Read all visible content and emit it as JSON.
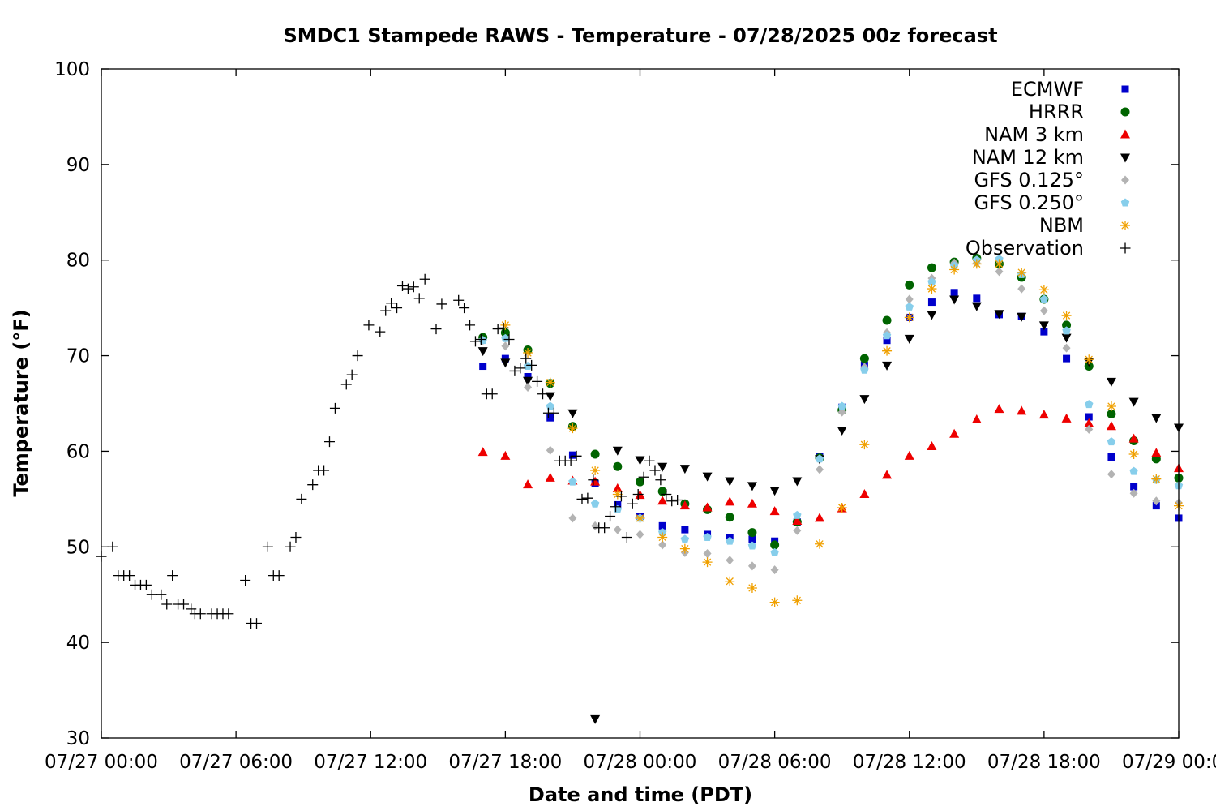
{
  "chart_data": {
    "type": "scatter",
    "title": "SMDC1 Stampede RAWS - Temperature - 07/28/2025 00z forecast",
    "xlabel": "Date and time (PDT)",
    "ylabel": "Temperature (°F)",
    "xlim": [
      "2025-07-27 00:00",
      "2025-07-29 00:00"
    ],
    "ylim": [
      30,
      100
    ],
    "yticks": [
      30,
      40,
      50,
      60,
      70,
      80,
      90,
      100
    ],
    "xtick_labels": [
      "07/27 00:00",
      "07/27 06:00",
      "07/27 12:00",
      "07/27 18:00",
      "07/28 00:00",
      "07/28 06:00",
      "07/28 12:00",
      "07/28 18:00",
      "07/29 00:00"
    ],
    "legend_position": "top-right",
    "grid": false,
    "series": [
      {
        "name": "ECMWF",
        "marker": "square",
        "color": "#0000cc",
        "x": [
          "2025-07-27 17:00",
          "2025-07-27 18:00",
          "2025-07-27 19:00",
          "2025-07-27 20:00",
          "2025-07-27 21:00",
          "2025-07-27 22:00",
          "2025-07-27 23:00",
          "2025-07-28 00:00",
          "2025-07-28 01:00",
          "2025-07-28 02:00",
          "2025-07-28 03:00",
          "2025-07-28 04:00",
          "2025-07-28 05:00",
          "2025-07-28 06:00",
          "2025-07-28 07:00",
          "2025-07-28 08:00",
          "2025-07-28 09:00",
          "2025-07-28 10:00",
          "2025-07-28 11:00",
          "2025-07-28 12:00",
          "2025-07-28 13:00",
          "2025-07-28 14:00",
          "2025-07-28 15:00",
          "2025-07-28 16:00",
          "2025-07-28 17:00",
          "2025-07-28 18:00",
          "2025-07-28 19:00",
          "2025-07-28 20:00",
          "2025-07-28 21:00",
          "2025-07-28 22:00",
          "2025-07-28 23:00",
          "2025-07-29 00:00"
        ],
        "y": [
          68.9,
          69.7,
          67.8,
          63.5,
          59.6,
          56.6,
          54.4,
          53.2,
          52.2,
          51.8,
          51.3,
          51.0,
          50.8,
          50.6,
          52.6,
          59.4,
          64.6,
          69.0,
          71.6,
          74.0,
          75.6,
          76.6,
          76.0,
          74.3,
          74.1,
          72.5,
          69.7,
          63.6,
          59.4,
          56.3,
          54.3,
          53.0
        ]
      },
      {
        "name": "HRRR",
        "marker": "circle",
        "color": "#006400",
        "x": [
          "2025-07-27 17:00",
          "2025-07-27 18:00",
          "2025-07-27 19:00",
          "2025-07-27 20:00",
          "2025-07-27 21:00",
          "2025-07-27 22:00",
          "2025-07-27 23:00",
          "2025-07-28 00:00",
          "2025-07-28 01:00",
          "2025-07-28 02:00",
          "2025-07-28 03:00",
          "2025-07-28 04:00",
          "2025-07-28 05:00",
          "2025-07-28 06:00",
          "2025-07-28 07:00",
          "2025-07-28 08:00",
          "2025-07-28 09:00",
          "2025-07-28 10:00",
          "2025-07-28 11:00",
          "2025-07-28 12:00",
          "2025-07-28 13:00",
          "2025-07-28 14:00",
          "2025-07-28 15:00",
          "2025-07-28 16:00",
          "2025-07-28 17:00",
          "2025-07-28 18:00",
          "2025-07-28 19:00",
          "2025-07-28 20:00",
          "2025-07-28 21:00",
          "2025-07-28 22:00",
          "2025-07-28 23:00",
          "2025-07-29 00:00"
        ],
        "y": [
          71.9,
          72.4,
          70.6,
          67.1,
          62.6,
          59.7,
          58.4,
          56.8,
          55.8,
          54.5,
          53.9,
          53.1,
          51.5,
          50.2,
          52.6,
          59.3,
          64.3,
          69.7,
          73.7,
          77.4,
          79.2,
          79.8,
          80.2,
          79.6,
          78.2,
          75.9,
          73.2,
          68.9,
          63.9,
          61.1,
          59.2,
          57.2
        ]
      },
      {
        "name": "NAM 3 km",
        "marker": "triangle-up",
        "color": "#ee0000",
        "x": [
          "2025-07-27 17:00",
          "2025-07-27 18:00",
          "2025-07-27 19:00",
          "2025-07-27 20:00",
          "2025-07-27 21:00",
          "2025-07-27 22:00",
          "2025-07-27 23:00",
          "2025-07-28 00:00",
          "2025-07-28 01:00",
          "2025-07-28 02:00",
          "2025-07-28 03:00",
          "2025-07-28 04:00",
          "2025-07-28 05:00",
          "2025-07-28 06:00",
          "2025-07-28 07:00",
          "2025-07-28 08:00",
          "2025-07-28 09:00",
          "2025-07-28 10:00",
          "2025-07-28 11:00",
          "2025-07-28 12:00",
          "2025-07-28 13:00",
          "2025-07-28 14:00",
          "2025-07-28 15:00",
          "2025-07-28 16:00",
          "2025-07-28 17:00",
          "2025-07-28 18:00",
          "2025-07-28 19:00",
          "2025-07-28 20:00",
          "2025-07-28 21:00",
          "2025-07-28 22:00",
          "2025-07-28 23:00",
          "2025-07-29 00:00"
        ],
        "y": [
          59.9,
          59.5,
          56.5,
          57.2,
          56.9,
          56.8,
          56.1,
          55.4,
          54.8,
          54.3,
          54.1,
          54.7,
          54.5,
          53.7,
          52.7,
          53.0,
          54.0,
          55.5,
          57.5,
          59.5,
          60.5,
          61.8,
          63.3,
          64.4,
          64.2,
          63.8,
          63.4,
          62.9,
          62.6,
          61.3,
          59.8,
          58.2
        ]
      },
      {
        "name": "NAM 12 km",
        "marker": "triangle-down",
        "color": "#000000",
        "x": [
          "2025-07-27 17:00",
          "2025-07-27 18:00",
          "2025-07-27 19:00",
          "2025-07-27 20:00",
          "2025-07-27 21:00",
          "2025-07-27 22:00",
          "2025-07-27 23:00",
          "2025-07-28 00:00",
          "2025-07-28 01:00",
          "2025-07-28 02:00",
          "2025-07-28 03:00",
          "2025-07-28 04:00",
          "2025-07-28 05:00",
          "2025-07-28 06:00",
          "2025-07-28 07:00",
          "2025-07-28 08:00",
          "2025-07-28 09:00",
          "2025-07-28 10:00",
          "2025-07-28 11:00",
          "2025-07-28 12:00",
          "2025-07-28 13:00",
          "2025-07-28 14:00",
          "2025-07-28 15:00",
          "2025-07-28 16:00",
          "2025-07-28 17:00",
          "2025-07-28 18:00",
          "2025-07-28 19:00",
          "2025-07-28 20:00",
          "2025-07-28 21:00",
          "2025-07-28 22:00",
          "2025-07-28 23:00",
          "2025-07-29 00:00"
        ],
        "y": [
          70.5,
          69.3,
          67.4,
          65.8,
          64.0,
          32.0,
          60.1,
          59.1,
          58.4,
          58.2,
          57.4,
          56.9,
          56.4,
          55.9,
          56.9,
          59.2,
          62.2,
          65.5,
          69.0,
          71.8,
          74.3,
          75.9,
          75.2,
          74.4,
          74.1,
          73.2,
          71.9,
          69.4,
          67.3,
          65.2,
          63.5,
          62.5
        ]
      },
      {
        "name": "GFS 0.125°",
        "marker": "diamond",
        "color": "#b3b3b3",
        "x": [
          "2025-07-27 17:00",
          "2025-07-27 18:00",
          "2025-07-27 19:00",
          "2025-07-27 20:00",
          "2025-07-27 21:00",
          "2025-07-27 22:00",
          "2025-07-27 23:00",
          "2025-07-28 00:00",
          "2025-07-28 01:00",
          "2025-07-28 02:00",
          "2025-07-28 03:00",
          "2025-07-28 04:00",
          "2025-07-28 05:00",
          "2025-07-28 06:00",
          "2025-07-28 07:00",
          "2025-07-28 08:00",
          "2025-07-28 09:00",
          "2025-07-28 10:00",
          "2025-07-28 11:00",
          "2025-07-28 12:00",
          "2025-07-28 13:00",
          "2025-07-28 14:00",
          "2025-07-28 15:00",
          "2025-07-28 16:00",
          "2025-07-28 17:00",
          "2025-07-28 18:00",
          "2025-07-28 19:00",
          "2025-07-28 20:00",
          "2025-07-28 21:00",
          "2025-07-28 22:00",
          "2025-07-28 23:00",
          "2025-07-29 00:00"
        ],
        "y": [
          71.6,
          71.0,
          66.7,
          60.1,
          53.0,
          52.2,
          51.8,
          51.3,
          50.2,
          49.4,
          49.3,
          48.6,
          48.0,
          47.6,
          51.7,
          58.1,
          64.1,
          68.8,
          72.4,
          75.9,
          78.1,
          79.7,
          79.7,
          78.8,
          77.0,
          74.7,
          70.8,
          62.3,
          57.6,
          55.6,
          54.8,
          54.6
        ]
      },
      {
        "name": "GFS 0.250°",
        "marker": "pentagon",
        "color": "#87ceeb",
        "x": [
          "2025-07-27 17:00",
          "2025-07-27 18:00",
          "2025-07-27 19:00",
          "2025-07-27 20:00",
          "2025-07-27 21:00",
          "2025-07-27 22:00",
          "2025-07-27 23:00",
          "2025-07-28 00:00",
          "2025-07-28 01:00",
          "2025-07-28 02:00",
          "2025-07-28 03:00",
          "2025-07-28 04:00",
          "2025-07-28 05:00",
          "2025-07-28 06:00",
          "2025-07-28 07:00",
          "2025-07-28 08:00",
          "2025-07-28 09:00",
          "2025-07-28 10:00",
          "2025-07-28 11:00",
          "2025-07-28 12:00",
          "2025-07-28 13:00",
          "2025-07-28 14:00",
          "2025-07-28 15:00",
          "2025-07-28 16:00",
          "2025-07-28 17:00",
          "2025-07-28 18:00",
          "2025-07-28 19:00",
          "2025-07-28 20:00",
          "2025-07-28 21:00",
          "2025-07-28 22:00",
          "2025-07-28 23:00",
          "2025-07-29 00:00"
        ],
        "y": [
          71.6,
          71.8,
          68.9,
          64.7,
          56.8,
          54.5,
          53.9,
          53.0,
          51.5,
          50.8,
          51.0,
          50.6,
          50.1,
          49.4,
          53.3,
          59.2,
          64.7,
          68.5,
          72.1,
          75.1,
          77.7,
          79.4,
          80.0,
          80.1,
          78.5,
          75.9,
          72.6,
          64.9,
          61.0,
          57.9,
          57.0,
          56.4
        ]
      },
      {
        "name": "NBM",
        "marker": "asterisk",
        "color": "#f0a000",
        "x": [
          "2025-07-27 18:00",
          "2025-07-27 19:00",
          "2025-07-27 20:00",
          "2025-07-27 21:00",
          "2025-07-27 22:00",
          "2025-07-27 23:00",
          "2025-07-28 00:00",
          "2025-07-28 01:00",
          "2025-07-28 02:00",
          "2025-07-28 03:00",
          "2025-07-28 04:00",
          "2025-07-28 05:00",
          "2025-07-28 06:00",
          "2025-07-28 07:00",
          "2025-07-28 08:00",
          "2025-07-28 09:00",
          "2025-07-28 10:00",
          "2025-07-28 11:00",
          "2025-07-28 12:00",
          "2025-07-28 13:00",
          "2025-07-28 14:00",
          "2025-07-28 15:00",
          "2025-07-28 16:00",
          "2025-07-28 17:00",
          "2025-07-28 18:00",
          "2025-07-28 19:00",
          "2025-07-28 20:00",
          "2025-07-28 21:00",
          "2025-07-28 22:00",
          "2025-07-28 23:00",
          "2025-07-29 00:00"
        ],
        "y": [
          73.2,
          70.3,
          67.2,
          62.4,
          58.0,
          55.5,
          53.0,
          51.0,
          49.8,
          48.4,
          46.4,
          45.7,
          44.2,
          44.4,
          50.3,
          54.1,
          60.7,
          70.5,
          74.0,
          77.0,
          79.0,
          79.6,
          79.6,
          78.7,
          76.9,
          74.2,
          69.6,
          64.7,
          59.7,
          57.1,
          54.3
        ]
      },
      {
        "name": "Observation",
        "marker": "plus",
        "color": "#000000",
        "x": [
          "2025-07-27 00:00",
          "2025-07-27 00:30",
          "2025-07-27 00:45",
          "2025-07-27 01:00",
          "2025-07-27 01:15",
          "2025-07-27 01:30",
          "2025-07-27 01:45",
          "2025-07-27 02:00",
          "2025-07-27 02:15",
          "2025-07-27 02:40",
          "2025-07-27 02:55",
          "2025-07-27 03:10",
          "2025-07-27 03:25",
          "2025-07-27 03:40",
          "2025-07-27 04:00",
          "2025-07-27 04:10",
          "2025-07-27 04:25",
          "2025-07-27 04:55",
          "2025-07-27 05:10",
          "2025-07-27 05:25",
          "2025-07-27 05:40",
          "2025-07-27 06:25",
          "2025-07-27 06:40",
          "2025-07-27 06:55",
          "2025-07-27 07:25",
          "2025-07-27 07:40",
          "2025-07-27 07:55",
          "2025-07-27 08:25",
          "2025-07-27 08:40",
          "2025-07-27 08:55",
          "2025-07-27 09:25",
          "2025-07-27 09:40",
          "2025-07-27 09:55",
          "2025-07-27 10:10",
          "2025-07-27 10:25",
          "2025-07-27 10:55",
          "2025-07-27 11:10",
          "2025-07-27 11:25",
          "2025-07-27 11:55",
          "2025-07-27 12:25",
          "2025-07-27 12:40",
          "2025-07-27 12:55",
          "2025-07-27 13:10",
          "2025-07-27 13:25",
          "2025-07-27 13:40",
          "2025-07-27 13:55",
          "2025-07-27 14:10",
          "2025-07-27 14:25",
          "2025-07-27 14:55",
          "2025-07-27 15:10",
          "2025-07-27 15:55",
          "2025-07-27 16:10",
          "2025-07-27 16:25",
          "2025-07-27 16:40",
          "2025-07-27 16:55",
          "2025-07-27 17:10",
          "2025-07-27 17:25",
          "2025-07-27 17:40",
          "2025-07-27 17:55",
          "2025-07-27 18:10",
          "2025-07-27 18:25",
          "2025-07-27 18:40",
          "2025-07-27 18:55",
          "2025-07-27 19:10",
          "2025-07-27 19:25",
          "2025-07-27 19:40",
          "2025-07-27 19:55",
          "2025-07-27 20:10",
          "2025-07-27 20:25",
          "2025-07-27 20:40",
          "2025-07-27 20:55",
          "2025-07-27 21:10",
          "2025-07-27 21:25",
          "2025-07-27 21:40",
          "2025-07-27 21:55",
          "2025-07-27 22:10",
          "2025-07-27 22:25",
          "2025-07-27 22:40",
          "2025-07-27 22:55",
          "2025-07-27 23:10",
          "2025-07-27 23:25",
          "2025-07-27 23:40",
          "2025-07-27 23:55",
          "2025-07-28 00:10",
          "2025-07-28 00:25",
          "2025-07-28 00:40",
          "2025-07-28 00:55",
          "2025-07-28 01:10",
          "2025-07-28 01:25",
          "2025-07-28 01:40"
        ],
        "y": [
          49,
          50,
          47,
          47,
          47,
          46,
          46,
          46,
          45,
          45,
          44,
          47,
          44,
          44,
          43.5,
          43,
          43,
          43,
          43,
          43,
          43,
          46.5,
          42,
          42,
          50,
          47,
          47,
          50,
          51,
          55,
          56.5,
          58,
          58,
          61,
          64.5,
          67,
          68,
          70,
          73.2,
          72.5,
          74.7,
          75.5,
          75,
          77.3,
          77,
          77.2,
          76,
          78,
          72.8,
          75.4,
          75.8,
          75,
          73.2,
          71.5,
          71.7,
          66,
          66,
          72.8,
          72.9,
          71.7,
          68.4,
          68.7,
          69.7,
          69,
          67.3,
          66,
          64,
          64,
          59,
          59,
          59,
          59.5,
          55,
          55.1,
          57,
          52,
          52,
          53.2,
          54.2,
          55.3,
          51,
          54.5,
          55.5,
          57.3,
          59,
          58,
          57,
          55.5,
          54.8,
          54.9
        ]
      }
    ]
  }
}
